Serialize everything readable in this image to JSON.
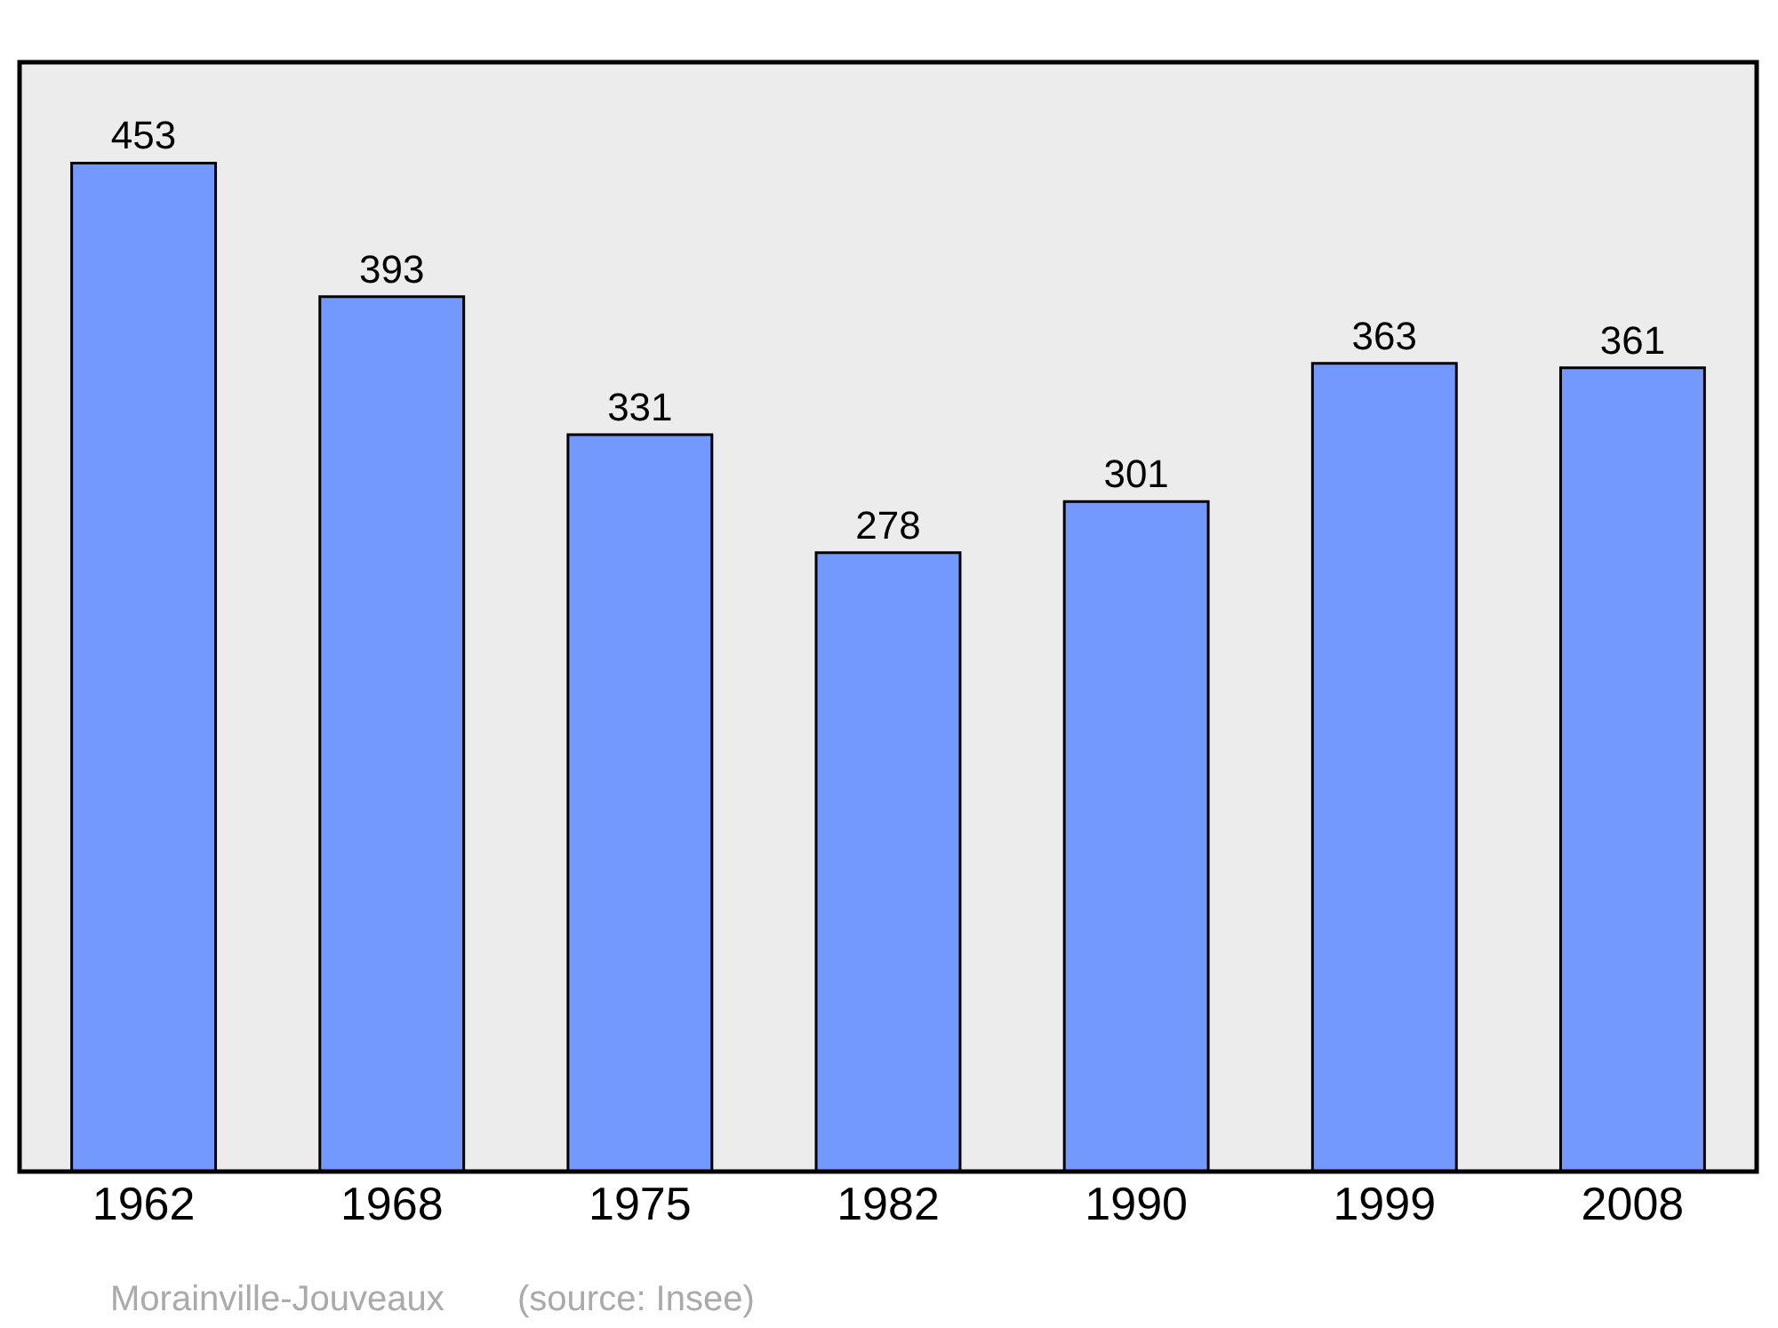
{
  "chart_data": {
    "type": "bar",
    "categories": [
      "1962",
      "1968",
      "1975",
      "1982",
      "1990",
      "1999",
      "2008"
    ],
    "values": [
      453,
      393,
      331,
      278,
      301,
      363,
      361
    ],
    "color": "#7399ff",
    "data_labels": true,
    "grid": false,
    "annotations": [
      "Morainville-Jouveaux",
      "(source: Insee)"
    ]
  }
}
